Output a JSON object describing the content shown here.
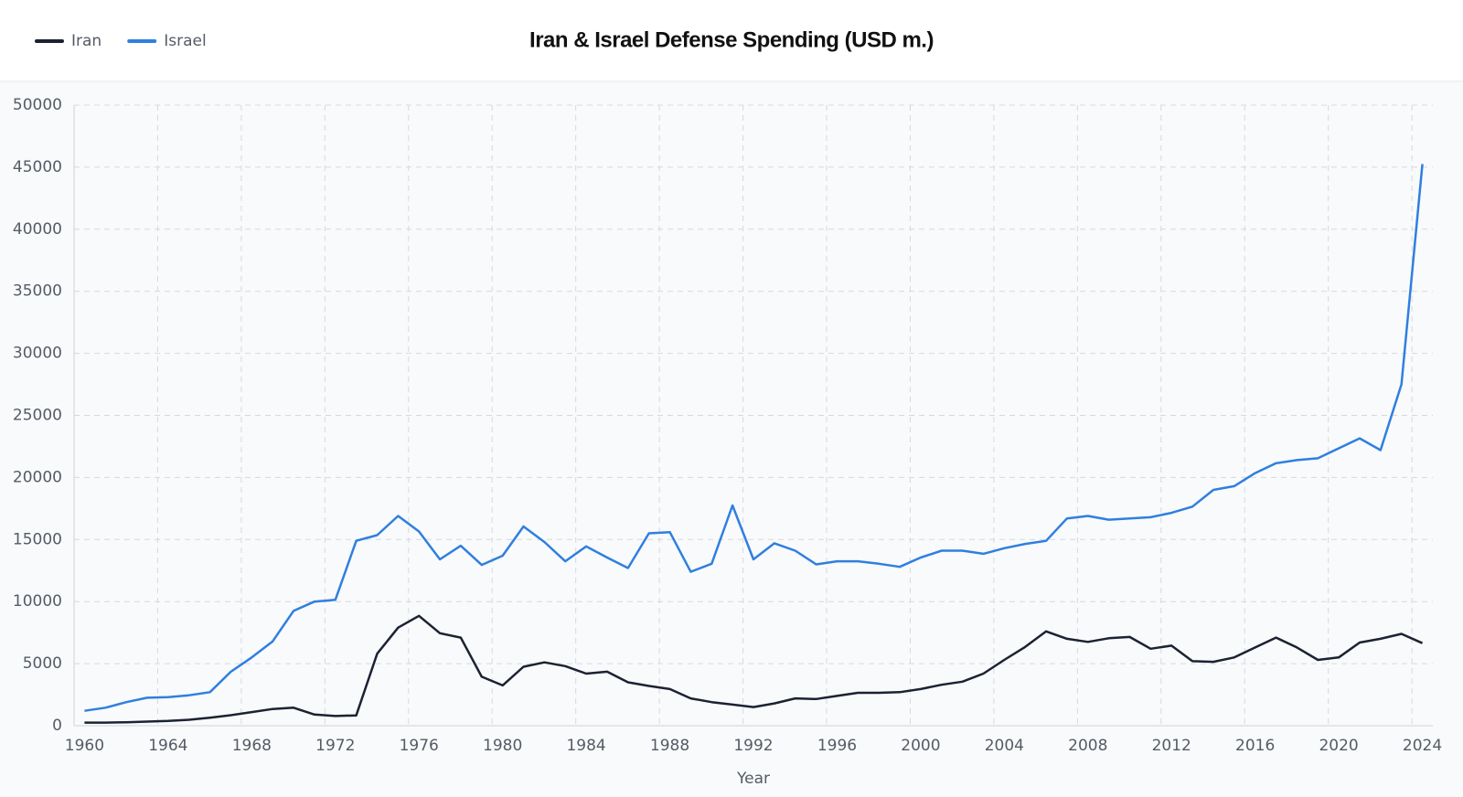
{
  "chart_data": {
    "type": "line",
    "title": "Iran & Israel Defense Spending (USD m.)",
    "x_label": "Year",
    "categories": [
      "1960",
      null,
      null,
      null,
      "1964",
      null,
      null,
      null,
      "1968",
      null,
      null,
      null,
      "1972",
      null,
      null,
      null,
      "1976",
      null,
      null,
      null,
      "1980",
      null,
      null,
      null,
      "1984",
      null,
      null,
      null,
      "1988",
      null,
      null,
      null,
      "1992",
      null,
      null,
      null,
      "1996",
      null,
      null,
      null,
      "2000",
      null,
      null,
      null,
      "2004",
      null,
      null,
      null,
      "2008",
      null,
      null,
      null,
      "2012",
      null,
      null,
      null,
      "2016",
      null,
      null,
      null,
      "2020",
      null,
      null,
      null,
      "2024"
    ],
    "series": [
      {
        "name": "Iran",
        "color": "#1b2232",
        "values": [
          250,
          250,
          280,
          330,
          380,
          480,
          650,
          850,
          1100,
          1350,
          1450,
          900,
          780,
          830,
          5800,
          7900,
          8850,
          7450,
          7100,
          3950,
          3250,
          4750,
          5100,
          4800,
          4200,
          4350,
          3500,
          3200,
          2950,
          2200,
          1900,
          1700,
          1500,
          1800,
          2200,
          2150,
          2400,
          2650,
          2650,
          2700,
          2950,
          3300,
          3550,
          4200,
          5300,
          6350,
          7600,
          7000,
          6750,
          7050,
          7150,
          6200,
          6450,
          5200,
          5150,
          5500,
          6300,
          7100,
          6300,
          5300,
          5500,
          6700,
          7000,
          7400,
          6650
        ]
      },
      {
        "name": "Israel",
        "color": "#2f7fe0",
        "values": [
          1200,
          1450,
          1900,
          2250,
          2300,
          2450,
          2700,
          4350,
          5500,
          6800,
          9250,
          10000,
          10150,
          14900,
          15350,
          16900,
          15650,
          13400,
          14500,
          12950,
          13700,
          16050,
          14800,
          13250,
          14450,
          13550,
          12700,
          15500,
          15600,
          12400,
          13050,
          17750,
          13400,
          14700,
          14100,
          13000,
          13250,
          13250,
          13050,
          12800,
          13550,
          14100,
          14100,
          13850,
          14300,
          14650,
          14900,
          16700,
          16900,
          16600,
          16700,
          16800,
          17150,
          17650,
          19000,
          19300,
          20350,
          21150,
          21400,
          21550,
          22350,
          23150,
          22200,
          27500,
          45250
        ]
      }
    ],
    "ylim": [
      0,
      50000
    ],
    "yticks": [
      0,
      5000,
      10000,
      15000,
      20000,
      25000,
      30000,
      35000,
      40000,
      45000,
      50000
    ],
    "grid": true
  }
}
